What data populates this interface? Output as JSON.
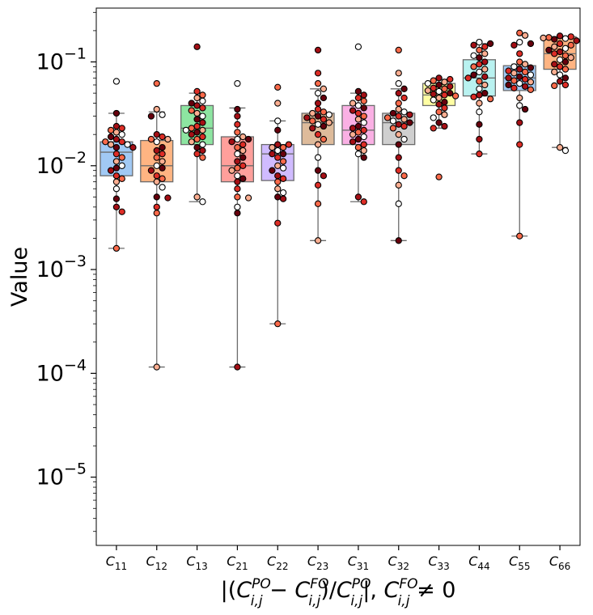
{
  "chart_data": {
    "type": "box",
    "scale": "log",
    "ylim": [
      2.2e-06,
      0.33
    ],
    "ylabel": "Value",
    "xlabel": {
      "prefix": "|(",
      "base1": "C",
      "sub1": "i,j",
      "sup1": "PO",
      "minus": " − ",
      "base2": "C",
      "sub2": "i,j",
      "sup2": "FO",
      "slash": ")/",
      "base3": "C",
      "sub3": "i,j",
      "sup3": "PO",
      "mid": "|, ",
      "base4": "C",
      "sub4": "i,j",
      "sup4": "FO",
      "suffix": " ≠ 0"
    },
    "yticks": [
      {
        "value": 0.1,
        "mant": "10",
        "exp": "−1"
      },
      {
        "value": 0.01,
        "mant": "10",
        "exp": "−2"
      },
      {
        "value": 0.001,
        "mant": "10",
        "exp": "−3"
      },
      {
        "value": 0.0001,
        "mant": "10",
        "exp": "−4"
      },
      {
        "value": 1e-05,
        "mant": "10",
        "exp": "−5"
      }
    ],
    "point_colors": [
      "#ffffff",
      "#fcae91",
      "#fb6a4a",
      "#de2d26",
      "#a50f15",
      "#67000d"
    ],
    "categories": [
      {
        "sym": "C",
        "sub": "11",
        "color": "#a1c9f4",
        "q1": 0.008,
        "median": 0.0135,
        "q3": 0.017,
        "whislo": 0.0016,
        "whishi": 0.032,
        "points": [
          0.065,
          0.032,
          0.024,
          0.023,
          0.022,
          0.021,
          0.02,
          0.019,
          0.018,
          0.017,
          0.017,
          0.016,
          0.016,
          0.015,
          0.015,
          0.013,
          0.012,
          0.011,
          0.01,
          0.0095,
          0.009,
          0.008,
          0.0075,
          0.007,
          0.006,
          0.0048,
          0.004,
          0.0036,
          0.0016
        ]
      },
      {
        "sym": "C",
        "sub": "12",
        "color": "#ffb482",
        "q1": 0.007,
        "median": 0.01,
        "q3": 0.0175,
        "whislo": 0.000115,
        "whishi": 0.033,
        "points": [
          0.062,
          0.035,
          0.031,
          0.03,
          0.02,
          0.019,
          0.018,
          0.018,
          0.017,
          0.015,
          0.014,
          0.013,
          0.012,
          0.011,
          0.01,
          0.0095,
          0.009,
          0.008,
          0.0075,
          0.007,
          0.0062,
          0.005,
          0.0049,
          0.004,
          0.0035,
          0.000115
        ]
      },
      {
        "sym": "C",
        "sub": "13",
        "color": "#8de5a1",
        "q1": 0.016,
        "median": 0.023,
        "q3": 0.038,
        "whislo": 0.0045,
        "whishi": 0.05,
        "points": [
          0.14,
          0.052,
          0.048,
          0.045,
          0.042,
          0.04,
          0.038,
          0.036,
          0.034,
          0.032,
          0.03,
          0.028,
          0.026,
          0.024,
          0.023,
          0.022,
          0.022,
          0.021,
          0.02,
          0.019,
          0.018,
          0.017,
          0.016,
          0.015,
          0.014,
          0.013,
          0.012,
          0.005,
          0.0045
        ]
      },
      {
        "sym": "C",
        "sub": "21",
        "color": "#ff9f9b",
        "q1": 0.007,
        "median": 0.01,
        "q3": 0.019,
        "whislo": 0.000115,
        "whishi": 0.036,
        "points": [
          0.062,
          0.035,
          0.03,
          0.025,
          0.021,
          0.019,
          0.018,
          0.018,
          0.017,
          0.016,
          0.015,
          0.014,
          0.013,
          0.012,
          0.011,
          0.01,
          0.0095,
          0.009,
          0.008,
          0.0075,
          0.007,
          0.006,
          0.005,
          0.0049,
          0.004,
          0.0035,
          0.000115
        ]
      },
      {
        "sym": "C",
        "sub": "22",
        "color": "#d0bbff",
        "q1": 0.0072,
        "median": 0.013,
        "q3": 0.016,
        "whislo": 0.0003,
        "whishi": 0.027,
        "points": [
          0.057,
          0.04,
          0.027,
          0.022,
          0.016,
          0.016,
          0.015,
          0.015,
          0.014,
          0.013,
          0.013,
          0.012,
          0.011,
          0.01,
          0.0095,
          0.009,
          0.008,
          0.0075,
          0.007,
          0.006,
          0.0055,
          0.005,
          0.0048,
          0.0028,
          0.0003
        ]
      },
      {
        "sym": "C",
        "sub": "23",
        "color": "#debb9b",
        "q1": 0.016,
        "median": 0.026,
        "q3": 0.032,
        "whislo": 0.0019,
        "whishi": 0.055,
        "points": [
          0.13,
          0.078,
          0.062,
          0.055,
          0.05,
          0.045,
          0.04,
          0.035,
          0.033,
          0.032,
          0.031,
          0.03,
          0.029,
          0.028,
          0.027,
          0.026,
          0.025,
          0.024,
          0.023,
          0.02,
          0.018,
          0.016,
          0.012,
          0.009,
          0.008,
          0.0065,
          0.0043,
          0.0019
        ]
      },
      {
        "sym": "C",
        "sub": "31",
        "color": "#fab0e4",
        "q1": 0.016,
        "median": 0.022,
        "q3": 0.038,
        "whislo": 0.0045,
        "whishi": 0.05,
        "points": [
          0.14,
          0.052,
          0.048,
          0.045,
          0.042,
          0.04,
          0.038,
          0.036,
          0.034,
          0.032,
          0.03,
          0.028,
          0.026,
          0.024,
          0.023,
          0.022,
          0.021,
          0.02,
          0.019,
          0.018,
          0.017,
          0.016,
          0.015,
          0.014,
          0.013,
          0.012,
          0.005,
          0.0045
        ]
      },
      {
        "sym": "C",
        "sub": "32",
        "color": "#cfcfcf",
        "q1": 0.016,
        "median": 0.026,
        "q3": 0.032,
        "whislo": 0.0019,
        "whishi": 0.055,
        "points": [
          0.13,
          0.078,
          0.062,
          0.055,
          0.05,
          0.045,
          0.04,
          0.035,
          0.033,
          0.032,
          0.031,
          0.03,
          0.029,
          0.028,
          0.027,
          0.026,
          0.025,
          0.024,
          0.023,
          0.02,
          0.018,
          0.016,
          0.012,
          0.009,
          0.008,
          0.0065,
          0.0043,
          0.0019
        ]
      },
      {
        "sym": "C",
        "sub": "33",
        "color": "#fffea3",
        "q1": 0.038,
        "median": 0.048,
        "q3": 0.062,
        "whislo": 0.023,
        "whishi": 0.068,
        "points": [
          0.07,
          0.068,
          0.066,
          0.064,
          0.062,
          0.06,
          0.058,
          0.056,
          0.055,
          0.053,
          0.052,
          0.05,
          0.049,
          0.048,
          0.047,
          0.045,
          0.043,
          0.041,
          0.039,
          0.036,
          0.033,
          0.031,
          0.029,
          0.026,
          0.024,
          0.023,
          0.0078
        ]
      },
      {
        "sym": "C",
        "sub": "44",
        "color": "#b9f2f0",
        "q1": 0.047,
        "median": 0.07,
        "q3": 0.105,
        "whislo": 0.013,
        "whishi": 0.15,
        "points": [
          0.155,
          0.15,
          0.145,
          0.14,
          0.13,
          0.12,
          0.115,
          0.11,
          0.1,
          0.095,
          0.09,
          0.085,
          0.08,
          0.075,
          0.072,
          0.07,
          0.065,
          0.06,
          0.055,
          0.05,
          0.048,
          0.046,
          0.044,
          0.04,
          0.033,
          0.025,
          0.018,
          0.013
        ]
      },
      {
        "sym": "C",
        "sub": "55",
        "color": "#a1c9f4",
        "q1": 0.053,
        "median": 0.07,
        "q3": 0.092,
        "whislo": 0.0021,
        "whishi": 0.095,
        "points": [
          0.19,
          0.18,
          0.155,
          0.15,
          0.145,
          0.12,
          0.1,
          0.095,
          0.09,
          0.088,
          0.085,
          0.082,
          0.08,
          0.078,
          0.075,
          0.072,
          0.07,
          0.068,
          0.066,
          0.064,
          0.062,
          0.06,
          0.058,
          0.056,
          0.054,
          0.045,
          0.038,
          0.035,
          0.026,
          0.016,
          0.0021
        ]
      },
      {
        "sym": "C",
        "sub": "66",
        "color": "#ffb482",
        "q1": 0.085,
        "median": 0.12,
        "q3": 0.175,
        "whislo": 0.015,
        "whishi": 0.175,
        "points": [
          0.178,
          0.175,
          0.172,
          0.17,
          0.168,
          0.165,
          0.16,
          0.15,
          0.145,
          0.14,
          0.135,
          0.13,
          0.125,
          0.12,
          0.115,
          0.11,
          0.105,
          0.1,
          0.095,
          0.09,
          0.085,
          0.08,
          0.075,
          0.07,
          0.065,
          0.06,
          0.059,
          0.015,
          0.014
        ]
      }
    ]
  }
}
